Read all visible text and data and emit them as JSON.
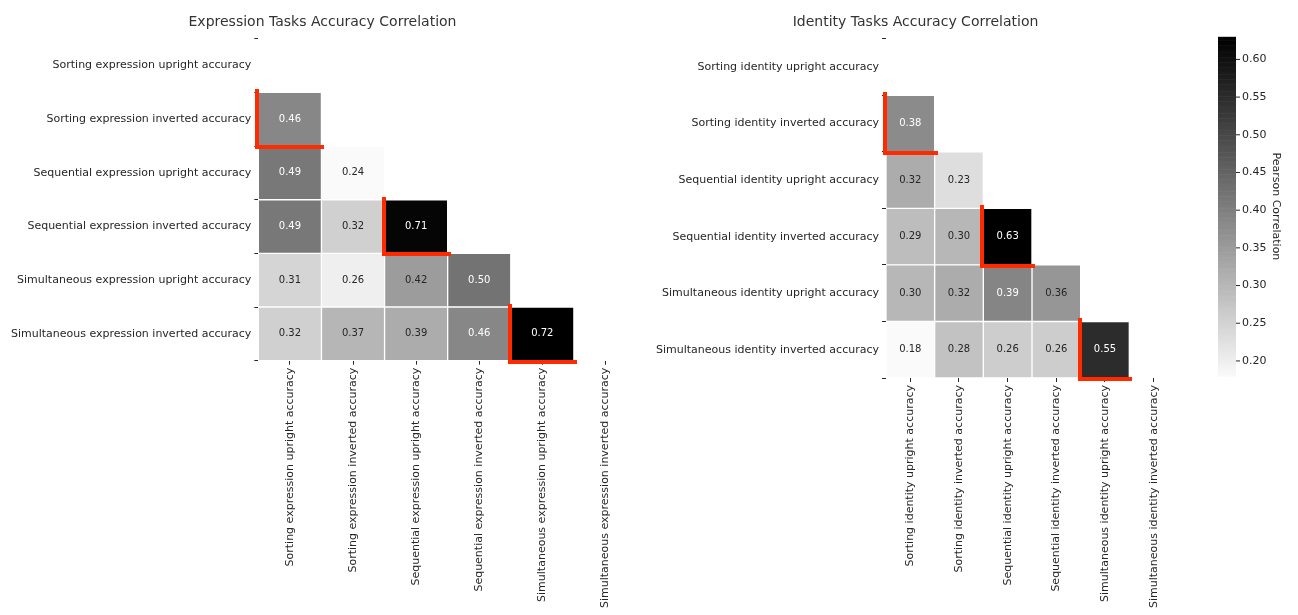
{
  "chart_data": [
    {
      "type": "heatmap",
      "title": "Expression Tasks Accuracy Correlation",
      "categories": [
        "Sorting expression upright accuracy",
        "Sorting expression inverted accuracy",
        "Sequential expression upright accuracy",
        "Sequential expression inverted accuracy",
        "Simultaneous expression upright accuracy",
        "Simultaneous expression inverted accuracy"
      ],
      "y_categories": [
        "Sorting expression upright accuracy",
        "Sorting expression inverted accuracy",
        "Sequential expression upright accuracy",
        "Sequential expression inverted accuracy",
        "Simultaneous expression upright accuracy",
        "Simultaneous expression inverted accuracy"
      ],
      "cells": [
        [
          null,
          null,
          null,
          null,
          null,
          null
        ],
        [
          0.46,
          null,
          null,
          null,
          null,
          null
        ],
        [
          0.49,
          0.24,
          null,
          null,
          null,
          null
        ],
        [
          0.49,
          0.32,
          0.71,
          null,
          null,
          null
        ],
        [
          0.31,
          0.26,
          0.42,
          0.5,
          null,
          null
        ],
        [
          0.32,
          0.37,
          0.39,
          0.46,
          0.72,
          null
        ]
      ],
      "cell_labels": [
        [
          null,
          null,
          null,
          null,
          null,
          null
        ],
        [
          "0.46",
          null,
          null,
          null,
          null,
          null
        ],
        [
          "0.49",
          "0.24",
          null,
          null,
          null,
          null
        ],
        [
          "0.49",
          "0.32",
          "0.71",
          null,
          null,
          null
        ],
        [
          "0.31",
          "0.26",
          "0.42",
          "0.50",
          null,
          null
        ],
        [
          "0.32",
          "0.37",
          "0.39",
          "0.46",
          "0.72",
          null
        ]
      ],
      "data_labels": true
    },
    {
      "type": "heatmap",
      "title": "Identity Tasks Accuracy Correlation",
      "categories": [
        "Sorting identity upright accuracy",
        "Sorting identity inverted accuracy",
        "Sequential identity upright accuracy",
        "Sequential identity inverted accuracy",
        "Simultaneous identity upright accuracy",
        "Simultaneous identity inverted accuracy"
      ],
      "y_categories": [
        "Sorting identity upright accuracy",
        "Sorting identity inverted accuracy",
        "Sequential identity upright accuracy",
        "Sequential identity inverted accuracy",
        "Simultaneous identity upright accuracy",
        "Simultaneous identity inverted accuracy"
      ],
      "cells": [
        [
          null,
          null,
          null,
          null,
          null,
          null
        ],
        [
          0.38,
          null,
          null,
          null,
          null,
          null
        ],
        [
          0.32,
          0.23,
          null,
          null,
          null,
          null
        ],
        [
          0.29,
          0.3,
          0.63,
          null,
          null,
          null
        ],
        [
          0.3,
          0.32,
          0.39,
          0.36,
          null,
          null
        ],
        [
          0.18,
          0.28,
          0.26,
          0.26,
          0.55,
          null
        ]
      ],
      "cell_labels": [
        [
          null,
          null,
          null,
          null,
          null,
          null
        ],
        [
          "0.38",
          null,
          null,
          null,
          null,
          null
        ],
        [
          "0.32",
          "0.23",
          null,
          null,
          null,
          null
        ],
        [
          "0.29",
          "0.30",
          "0.63",
          null,
          null,
          null
        ],
        [
          "0.30",
          "0.32",
          "0.39",
          "0.36",
          null,
          null
        ],
        [
          "0.18",
          "0.28",
          "0.26",
          "0.26",
          "0.55",
          null
        ]
      ],
      "data_labels": true,
      "clim": [
        0.18,
        0.63
      ],
      "cticks": [
        {
          "value": 0.2,
          "label": "0.20"
        },
        {
          "value": 0.25,
          "label": "0.25"
        },
        {
          "value": 0.3,
          "label": "0.30"
        },
        {
          "value": 0.35,
          "label": "0.35"
        },
        {
          "value": 0.4,
          "label": "0.40"
        },
        {
          "value": 0.45,
          "label": "0.45"
        },
        {
          "value": 0.5,
          "label": "0.50"
        },
        {
          "value": 0.55,
          "label": "0.55"
        },
        {
          "value": 0.6,
          "label": "0.60"
        }
      ],
      "clabel": "Pearson Correlation"
    }
  ]
}
